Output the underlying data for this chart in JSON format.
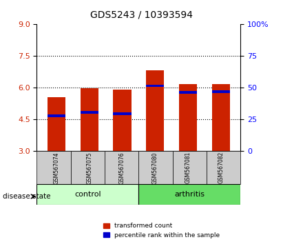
{
  "title": "GDS5243 / 10393594",
  "samples": [
    "GSM567074",
    "GSM567075",
    "GSM567076",
    "GSM567080",
    "GSM567081",
    "GSM567082"
  ],
  "groups": [
    "control",
    "control",
    "control",
    "arthritis",
    "arthritis",
    "arthritis"
  ],
  "bar_bottoms": [
    3.0,
    3.0,
    3.0,
    3.0,
    3.0,
    3.0
  ],
  "bar_tops": [
    5.55,
    5.98,
    5.92,
    6.82,
    6.18,
    6.18
  ],
  "blue_positions": [
    4.62,
    4.78,
    4.72,
    6.04,
    5.72,
    5.75
  ],
  "blue_heights": [
    0.12,
    0.12,
    0.12,
    0.12,
    0.12,
    0.12
  ],
  "ylim": [
    3.0,
    9.0
  ],
  "yticks_left": [
    3,
    4.5,
    6,
    7.5,
    9
  ],
  "yticks_right": [
    0,
    25,
    50,
    75,
    100
  ],
  "bar_color": "#cc2200",
  "blue_color": "#0000cc",
  "bar_width": 0.55,
  "control_color": "#ccffcc",
  "arthritis_color": "#66dd66",
  "label_bg_color": "#cccccc",
  "legend_red_label": "transformed count",
  "legend_blue_label": "percentile rank within the sample",
  "disease_state_label": "disease state",
  "control_label": "control",
  "arthritis_label": "arthritis"
}
